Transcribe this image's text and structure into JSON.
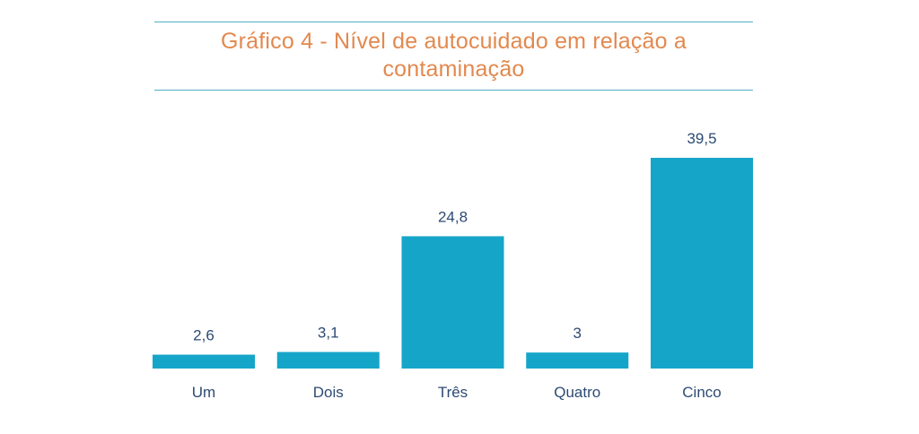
{
  "chart_data": {
    "type": "bar",
    "title": "Gráfico 4 - Nível de autocuidado em relação a contaminação",
    "categories": [
      "Um",
      "Dois",
      "Três",
      "Quatro",
      "Cinco"
    ],
    "values": [
      2.6,
      3.1,
      24.8,
      3,
      39.5
    ],
    "value_labels": [
      "2,6",
      "3,1",
      "24,8",
      "3",
      "39,5"
    ],
    "xlabel": "",
    "ylabel": "",
    "ylim": [
      0,
      39.5
    ],
    "grid": false,
    "legend": "none",
    "colors": {
      "bar": "#15a5c9",
      "title": "#e2894f",
      "rule": "#4fb0c6",
      "label": "#2d4a73"
    }
  }
}
